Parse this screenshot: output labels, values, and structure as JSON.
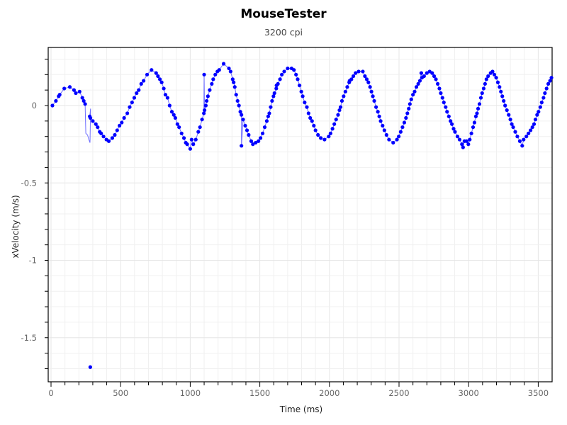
{
  "window": {
    "title": "MouseTester"
  },
  "chart_data": {
    "type": "scatter",
    "title": "MouseTester",
    "subtitle": "3200 cpi",
    "xlabel": "Time (ms)",
    "ylabel": "xVelocity (m/s)",
    "xlim": [
      -15,
      3600
    ],
    "ylim": [
      -1.78,
      0.37
    ],
    "xticks": [
      0,
      500,
      1000,
      1500,
      2000,
      2500,
      3000,
      3500
    ],
    "xtick_labels": [
      "0",
      "500",
      "1000",
      "1500",
      "2000",
      "2500",
      "3000",
      "3500"
    ],
    "yticks": [
      0,
      -0.5,
      -1,
      -1.5
    ],
    "ytick_labels": [
      "0",
      "-0.5",
      "-1",
      "-1.5"
    ],
    "grid": true,
    "legend": null,
    "series": [
      {
        "name": "xVelocity",
        "color": "#0000ff",
        "line_color": "#4a4aff",
        "marker": "circle",
        "points": [
          [
            10,
            0.0
          ],
          [
            35,
            0.03
          ],
          [
            55,
            0.06
          ],
          [
            62,
            0.07
          ],
          [
            95,
            0.11
          ],
          [
            135,
            0.12
          ],
          [
            165,
            0.1
          ],
          [
            178,
            0.08
          ],
          [
            205,
            0.09
          ],
          [
            225,
            0.05
          ],
          [
            235,
            0.03
          ],
          [
            245,
            0.01
          ],
          [
            278,
            -0.07
          ],
          [
            283,
            -0.08
          ],
          [
            300,
            -0.1
          ],
          [
            322,
            -0.12
          ],
          [
            335,
            -0.14
          ],
          [
            350,
            -0.17
          ],
          [
            360,
            -0.18
          ],
          [
            377,
            -0.2
          ],
          [
            398,
            -0.22
          ],
          [
            415,
            -0.23
          ],
          [
            440,
            -0.21
          ],
          [
            458,
            -0.19
          ],
          [
            475,
            -0.16
          ],
          [
            492,
            -0.13
          ],
          [
            508,
            -0.11
          ],
          [
            525,
            -0.08
          ],
          [
            548,
            -0.05
          ],
          [
            565,
            -0.01
          ],
          [
            582,
            0.02
          ],
          [
            598,
            0.05
          ],
          [
            615,
            0.08
          ],
          [
            630,
            0.1
          ],
          [
            648,
            0.14
          ],
          [
            665,
            0.16
          ],
          [
            690,
            0.2
          ],
          [
            722,
            0.23
          ],
          [
            755,
            0.21
          ],
          [
            768,
            0.19
          ],
          [
            782,
            0.17
          ],
          [
            795,
            0.15
          ],
          [
            810,
            0.11
          ],
          [
            822,
            0.07
          ],
          [
            837,
            0.05
          ],
          [
            852,
            0.0
          ],
          [
            868,
            -0.04
          ],
          [
            882,
            -0.06
          ],
          [
            893,
            -0.08
          ],
          [
            908,
            -0.12
          ],
          [
            920,
            -0.14
          ],
          [
            938,
            -0.18
          ],
          [
            955,
            -0.21
          ],
          [
            968,
            -0.24
          ],
          [
            978,
            -0.25
          ],
          [
            1010,
            -0.22
          ],
          [
            1000,
            -0.28
          ],
          [
            1022,
            -0.25
          ],
          [
            1040,
            -0.22
          ],
          [
            1058,
            -0.17
          ],
          [
            1070,
            -0.14
          ],
          [
            1085,
            -0.09
          ],
          [
            1098,
            -0.05
          ],
          [
            1103,
            -0.03
          ],
          [
            1112,
            0.0
          ],
          [
            1118,
            0.03
          ],
          [
            1127,
            0.06
          ],
          [
            1140,
            0.1
          ],
          [
            1155,
            0.14
          ],
          [
            1165,
            0.17
          ],
          [
            1180,
            0.2
          ],
          [
            1195,
            0.22
          ],
          [
            1208,
            0.23
          ],
          [
            1240,
            0.27
          ],
          [
            1100,
            0.2
          ],
          [
            1278,
            0.24
          ],
          [
            1290,
            0.22
          ],
          [
            1305,
            0.17
          ],
          [
            1312,
            0.15
          ],
          [
            1320,
            0.12
          ],
          [
            1330,
            0.07
          ],
          [
            1340,
            0.03
          ],
          [
            1350,
            0.0
          ],
          [
            1360,
            -0.04
          ],
          [
            1368,
            -0.06
          ],
          [
            1380,
            -0.09
          ],
          [
            1395,
            -0.13
          ],
          [
            1408,
            -0.16
          ],
          [
            1420,
            -0.19
          ],
          [
            1438,
            -0.23
          ],
          [
            1450,
            -0.25
          ],
          [
            1470,
            -0.24
          ],
          [
            1490,
            -0.23
          ],
          [
            1505,
            -0.21
          ],
          [
            1520,
            -0.18
          ],
          [
            1535,
            -0.14
          ],
          [
            1550,
            -0.1
          ],
          [
            1560,
            -0.07
          ],
          [
            1568,
            -0.05
          ],
          [
            1578,
            -0.01
          ],
          [
            1588,
            0.03
          ],
          [
            1598,
            0.06
          ],
          [
            1605,
            0.08
          ],
          [
            1618,
            0.11
          ],
          [
            1630,
            0.14
          ],
          [
            1645,
            0.17
          ],
          [
            1658,
            0.2
          ],
          [
            1675,
            0.22
          ],
          [
            1700,
            0.24
          ],
          [
            1728,
            0.24
          ],
          [
            1745,
            0.23
          ],
          [
            1368,
            -0.26
          ],
          [
            1620,
            0.13
          ],
          [
            1760,
            0.2
          ],
          [
            1772,
            0.17
          ],
          [
            1785,
            0.13
          ],
          [
            1798,
            0.09
          ],
          [
            1808,
            0.06
          ],
          [
            1822,
            0.02
          ],
          [
            1838,
            -0.01
          ],
          [
            1850,
            -0.05
          ],
          [
            1862,
            -0.08
          ],
          [
            1875,
            -0.1
          ],
          [
            1888,
            -0.13
          ],
          [
            1900,
            -0.16
          ],
          [
            1918,
            -0.19
          ],
          [
            1938,
            -0.21
          ],
          [
            1965,
            -0.22
          ],
          [
            1995,
            -0.2
          ],
          [
            2008,
            -0.18
          ],
          [
            2022,
            -0.15
          ],
          [
            2035,
            -0.12
          ],
          [
            2048,
            -0.09
          ],
          [
            2062,
            -0.06
          ],
          [
            2072,
            -0.03
          ],
          [
            2080,
            -0.01
          ],
          [
            2090,
            0.03
          ],
          [
            2102,
            0.06
          ],
          [
            2115,
            0.09
          ],
          [
            2128,
            0.12
          ],
          [
            2142,
            0.15
          ],
          [
            2158,
            0.17
          ],
          [
            2172,
            0.19
          ],
          [
            2188,
            0.21
          ],
          [
            2210,
            0.22
          ],
          [
            2240,
            0.22
          ],
          [
            2255,
            0.19
          ],
          [
            2268,
            0.17
          ],
          [
            2280,
            0.15
          ],
          [
            2292,
            0.12
          ],
          [
            2302,
            0.09
          ],
          [
            2312,
            0.06
          ],
          [
            2322,
            0.03
          ],
          [
            2335,
            -0.01
          ],
          [
            2348,
            -0.04
          ],
          [
            2358,
            -0.07
          ],
          [
            2368,
            -0.1
          ],
          [
            2382,
            -0.13
          ],
          [
            2395,
            -0.16
          ],
          [
            2410,
            -0.19
          ],
          [
            2428,
            -0.22
          ],
          [
            2458,
            -0.24
          ],
          [
            2485,
            -0.22
          ],
          [
            2498,
            -0.2
          ],
          [
            2145,
            0.16
          ],
          [
            2512,
            -0.17
          ],
          [
            2525,
            -0.14
          ],
          [
            2538,
            -0.11
          ],
          [
            2550,
            -0.08
          ],
          [
            2560,
            -0.05
          ],
          [
            2570,
            -0.02
          ],
          [
            2578,
            0.01
          ],
          [
            2588,
            0.04
          ],
          [
            2600,
            0.07
          ],
          [
            2612,
            0.09
          ],
          [
            2625,
            0.12
          ],
          [
            2638,
            0.14
          ],
          [
            2650,
            0.16
          ],
          [
            2665,
            0.18
          ],
          [
            2680,
            0.19
          ],
          [
            2700,
            0.21
          ],
          [
            2720,
            0.22
          ],
          [
            2738,
            0.21
          ],
          [
            2752,
            0.19
          ],
          [
            2765,
            0.17
          ],
          [
            2778,
            0.14
          ],
          [
            2790,
            0.11
          ],
          [
            2800,
            0.08
          ],
          [
            2812,
            0.05
          ],
          [
            2822,
            0.02
          ],
          [
            2835,
            -0.01
          ],
          [
            2845,
            -0.04
          ],
          [
            2858,
            -0.07
          ],
          [
            2870,
            -0.1
          ],
          [
            2880,
            -0.12
          ],
          [
            2892,
            -0.15
          ],
          [
            2902,
            -0.17
          ],
          [
            2920,
            -0.2
          ],
          [
            2935,
            -0.22
          ],
          [
            2952,
            -0.25
          ],
          [
            2960,
            -0.27
          ],
          [
            2970,
            -0.23
          ],
          [
            2985,
            -0.23
          ],
          [
            2998,
            -0.25
          ],
          [
            3008,
            -0.22
          ],
          [
            2660,
            0.21
          ],
          [
            3020,
            -0.18
          ],
          [
            3032,
            -0.14
          ],
          [
            3042,
            -0.11
          ],
          [
            3052,
            -0.07
          ],
          [
            3060,
            -0.05
          ],
          [
            3068,
            -0.02
          ],
          [
            3078,
            0.01
          ],
          [
            3088,
            0.05
          ],
          [
            3097,
            0.08
          ],
          [
            3108,
            0.11
          ],
          [
            3118,
            0.14
          ],
          [
            3128,
            0.17
          ],
          [
            3140,
            0.19
          ],
          [
            3158,
            0.21
          ],
          [
            3172,
            0.22
          ],
          [
            3185,
            0.2
          ],
          [
            3198,
            0.18
          ],
          [
            3210,
            0.15
          ],
          [
            3222,
            0.12
          ],
          [
            3232,
            0.09
          ],
          [
            3242,
            0.06
          ],
          [
            3252,
            0.03
          ],
          [
            3262,
            0.0
          ],
          [
            3275,
            -0.03
          ],
          [
            3288,
            -0.06
          ],
          [
            3300,
            -0.09
          ],
          [
            3310,
            -0.12
          ],
          [
            3320,
            -0.14
          ],
          [
            3335,
            -0.17
          ],
          [
            3350,
            -0.2
          ],
          [
            3368,
            -0.23
          ],
          [
            3385,
            -0.26
          ],
          [
            3395,
            -0.22
          ],
          [
            3415,
            -0.2
          ],
          [
            3430,
            -0.18
          ],
          [
            3445,
            -0.16
          ],
          [
            3458,
            -0.14
          ],
          [
            3470,
            -0.12
          ],
          [
            3480,
            -0.09
          ],
          [
            3492,
            -0.06
          ],
          [
            3502,
            -0.04
          ],
          [
            3515,
            -0.01
          ],
          [
            3525,
            0.02
          ],
          [
            3538,
            0.05
          ],
          [
            3548,
            0.08
          ],
          [
            3560,
            0.11
          ],
          [
            3572,
            0.14
          ],
          [
            3585,
            0.16
          ],
          [
            3595,
            0.18
          ]
        ],
        "outliers": [
          [
            282,
            -1.69
          ]
        ]
      }
    ]
  }
}
